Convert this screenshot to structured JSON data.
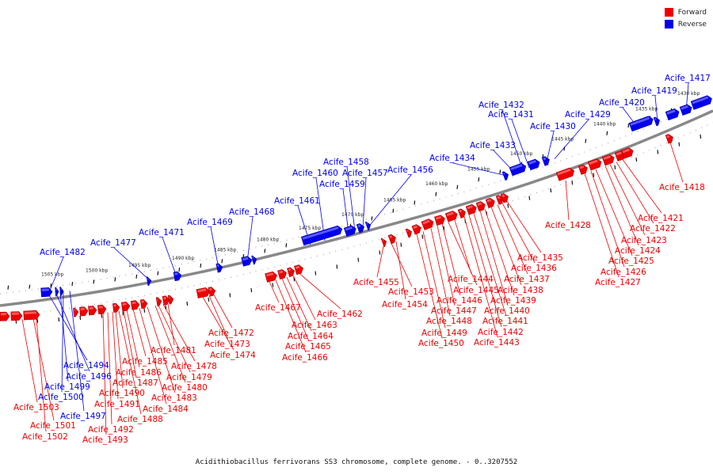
{
  "legend": [
    {
      "label": "Forward",
      "color": "#ee0000"
    },
    {
      "label": "Reverse",
      "color": "#0000ee"
    }
  ],
  "caption": "Acidithiobacillus ferrivorans SS3 chromosome, complete genome. - 0..3207552",
  "colors": {
    "forward": "#ee0000",
    "reverse": "#0000ee",
    "axis": "#888888"
  },
  "ticks": [
    "1505 kbp",
    "1500 kbp",
    "1495 kbp",
    "1490 kbp",
    "1485 kbp",
    "1480 kbp",
    "1475 kbp",
    "1470 kbp",
    "1465 kbp",
    "1460 kbp",
    "1455 kbp",
    "1450 kbp",
    "1445 kbp",
    "1440 kbp",
    "1435 kbp",
    "1430 kbp"
  ],
  "reverse_labels": [
    "Acife_1482",
    "Acife_1477",
    "Acife_1471",
    "Acife_1469",
    "Acife_1468",
    "Acife_1461",
    "Acife_1460",
    "Acife_1459",
    "Acife_1458",
    "Acife_1457",
    "Acife_1456",
    "Acife_1434",
    "Acife_1433",
    "Acife_1432",
    "Acife_1431",
    "Acife_1430",
    "Acife_1429",
    "Acife_1420",
    "Acife_1419",
    "Acife_1417",
    "Acife_1494",
    "Acife_1496",
    "Acife_1499",
    "Acife_1500",
    "Acife_1497"
  ],
  "forward_labels": [
    "Acife_1418",
    "Acife_1428",
    "Acife_1421",
    "Acife_1422",
    "Acife_1423",
    "Acife_1424",
    "Acife_1425",
    "Acife_1426",
    "Acife_1427",
    "Acife_1435",
    "Acife_1436",
    "Acife_1437",
    "Acife_1438",
    "Acife_1439",
    "Acife_1440",
    "Acife_1441",
    "Acife_1442",
    "Acife_1443",
    "Acife_1444",
    "Acife_1445",
    "Acife_1446",
    "Acife_1447",
    "Acife_1448",
    "Acife_1449",
    "Acife_1450",
    "Acife_1455",
    "Acife_1453",
    "Acife_1454",
    "Acife_1462",
    "Acife_1463",
    "Acife_1464",
    "Acife_1465",
    "Acife_1466",
    "Acife_1467",
    "Acife_1472",
    "Acife_1473",
    "Acife_1474",
    "Acife_1481",
    "Acife_1478",
    "Acife_1479",
    "Acife_1480",
    "Acife_1483",
    "Acife_1484",
    "Acife_1485",
    "Acife_1486",
    "Acife_1487",
    "Acife_1488",
    "Acife_1490",
    "Acife_1491",
    "Acife_1492",
    "Acife_1493",
    "Acife_1503",
    "Acife_1501",
    "Acife_1502"
  ]
}
